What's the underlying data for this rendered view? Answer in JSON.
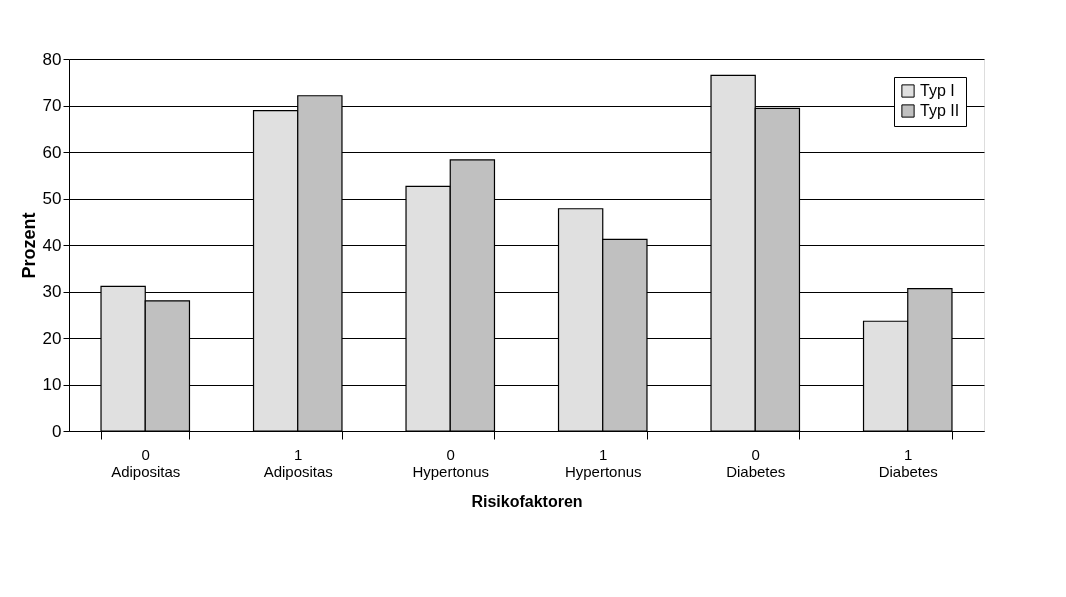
{
  "chart_data": {
    "type": "bar",
    "xlabel": "Risikofaktoren",
    "ylabel": "Prozent",
    "categories": [
      "0\nAdipositas",
      "1\nAdipositas",
      "0\nHypertonus",
      "1\nHypertonus",
      "0\nDiabetes",
      "1\nDiabetes"
    ],
    "series": [
      {
        "name": "Typ I",
        "color": "#e0e0e0",
        "values": [
          31.1,
          68.9,
          52.6,
          47.8,
          76.5,
          23.6
        ]
      },
      {
        "name": "Typ II",
        "color": "#c0c0c0",
        "values": [
          28.0,
          72.1,
          58.3,
          41.2,
          69.4,
          30.6
        ]
      }
    ],
    "ylim": [
      0,
      80
    ],
    "yticks": [
      0,
      10,
      20,
      30,
      40,
      50,
      60,
      70,
      80
    ],
    "grid": "y",
    "legend": "top right"
  }
}
